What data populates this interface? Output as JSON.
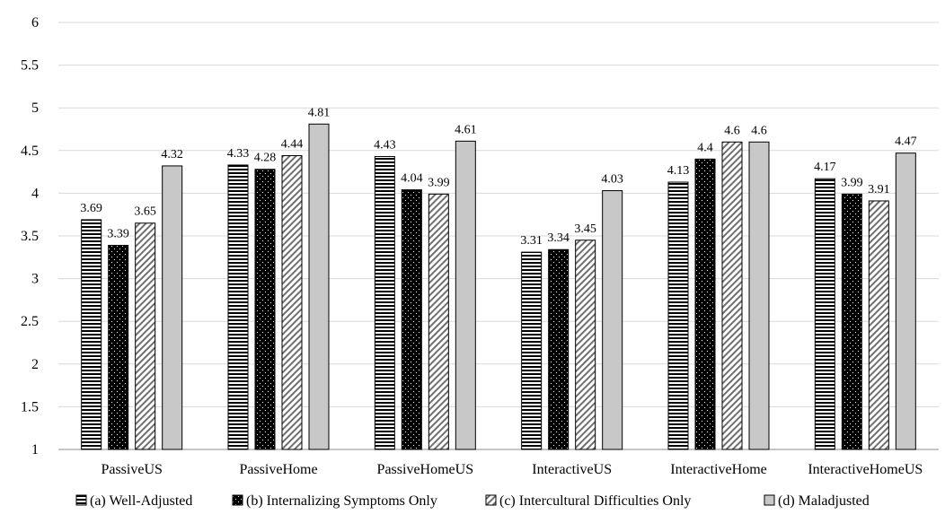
{
  "chart_data": {
    "type": "bar",
    "title": "",
    "xlabel": "",
    "ylabel": "",
    "ylim": [
      1,
      6
    ],
    "yticks": [
      "1",
      "1.5",
      "2",
      "2.5",
      "3",
      "3.5",
      "4",
      "4.5",
      "5",
      "5.5",
      "6"
    ],
    "grid": true,
    "legend_position": "bottom",
    "categories": [
      "PassiveUS",
      "PassiveHome",
      "PassiveHomeUS",
      "InteractiveUS",
      "InteractiveHome",
      "InteractiveHomeUS"
    ],
    "series": [
      {
        "name": "(a) Well-Adjusted",
        "pattern": "horizontal-stripes",
        "values": [
          3.69,
          4.33,
          4.43,
          3.31,
          4.13,
          4.17
        ],
        "labels": [
          "3.69",
          "4.33",
          "4.43",
          "3.31",
          "4.13",
          "4.17"
        ]
      },
      {
        "name": "(b) Internalizing Symptoms Only",
        "pattern": "black-dots",
        "values": [
          3.39,
          4.28,
          4.04,
          3.34,
          4.4,
          3.99
        ],
        "labels": [
          "3.39",
          "4.28",
          "4.04",
          "3.34",
          "4.4",
          "3.99"
        ]
      },
      {
        "name": "(c) Intercultural Difficulties Only",
        "pattern": "diagonal-stripes",
        "values": [
          3.65,
          4.44,
          3.99,
          3.45,
          4.6,
          3.91
        ],
        "labels": [
          "3.65",
          "4.44",
          "3.99",
          "3.45",
          "4.6",
          "3.91"
        ]
      },
      {
        "name": "(d) Maladjusted",
        "pattern": "solid-gray",
        "values": [
          4.32,
          4.81,
          4.61,
          4.03,
          4.6,
          4.47
        ],
        "labels": [
          "4.32",
          "4.81",
          "4.61",
          "4.03",
          "4.6",
          "4.47"
        ]
      }
    ]
  },
  "colors": {
    "grid": "#d9d9d9",
    "bar_outline": "#000000",
    "gray_fill": "#c8c8c8",
    "black_fill": "#000000"
  }
}
